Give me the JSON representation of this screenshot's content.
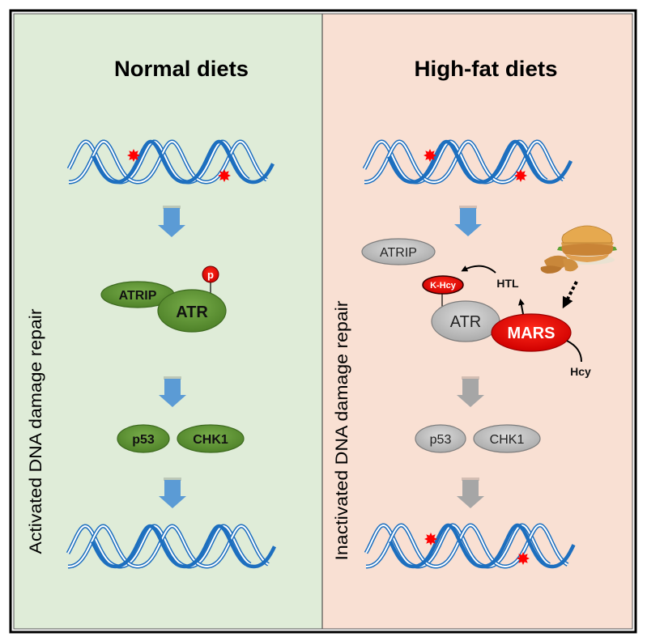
{
  "panels": {
    "left": {
      "title": "Normal diets",
      "side_label": "Activated DNA damage repair",
      "background": "#dfecd8",
      "proteins": {
        "atrip": "ATRIP",
        "atr": "ATR",
        "phospho": "p",
        "p53": "p53",
        "chk1": "CHK1"
      },
      "protein_color": "#5e9436",
      "arrow_color": "#5b9bd5"
    },
    "right": {
      "title": "High-fat diets",
      "side_label": "Inactivated DNA damage repair",
      "background": "#f9e0d3",
      "proteins": {
        "atrip": "ATRIP",
        "atr": "ATR",
        "khcy": "K-Hcy",
        "mars": "MARS",
        "htl": "HTL",
        "hcy": "Hcy",
        "p53": "p53",
        "chk1": "CHK1"
      },
      "protein_color": "#c4c4c4",
      "highlight_color": "#e60000",
      "arrow_color_top": "#5b9bd5",
      "arrow_color": "#a6a6a6",
      "food_icon": "fried-chicken-burger-image"
    }
  },
  "dna_color": "#1d6fbf",
  "damage_color": "#ff0000"
}
